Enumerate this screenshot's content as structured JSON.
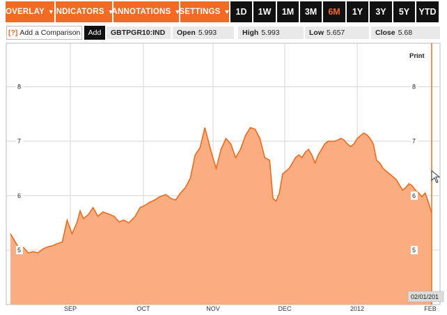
{
  "toolbar": {
    "menus": [
      {
        "label": "OVERLAY",
        "caret": "▼"
      },
      {
        "label": "INDICATORS",
        "caret": "▼"
      },
      {
        "label": "ANNOTATIONS",
        "caret": "▼"
      },
      {
        "label": "SETTINGS",
        "caret": "▼"
      }
    ],
    "ranges": [
      {
        "label": "1D",
        "active": false
      },
      {
        "label": "1W",
        "active": false
      },
      {
        "label": "1M",
        "active": false
      },
      {
        "label": "3M",
        "active": false
      },
      {
        "label": "6M",
        "active": true
      },
      {
        "label": "1Y",
        "active": false
      },
      {
        "label": "3Y",
        "active": false
      },
      {
        "label": "5Y",
        "active": false
      },
      {
        "label": "YTD",
        "active": false
      }
    ]
  },
  "quote": {
    "help_icon": "[?]",
    "comparison_label": "Add a Comparison",
    "add_label": "Add",
    "ticker": "GBTPGR10:IND",
    "open_label": "Open",
    "open_value": "5.993",
    "high_label": "High",
    "high_value": "5.993",
    "low_label": "Low",
    "low_value": "5.657",
    "close_label": "Close",
    "close_value": "5.68"
  },
  "chart": {
    "print_label": "Print",
    "date_label": "02/01/201",
    "cursor_icon": "mouse-pointer-icon"
  },
  "colors": {
    "accent": "#f26b22",
    "fill": "#f9ad80",
    "line": "#ee6a1d",
    "toolbar_dark": "#111111"
  },
  "chart_data": {
    "type": "area",
    "ylim": [
      4.0,
      8.8
    ],
    "yticks": [
      5,
      6,
      7,
      8
    ],
    "months": [
      "SEP",
      "OCT",
      "NOV",
      "DEC",
      "2012",
      "FEB"
    ],
    "x": [
      0,
      3,
      5,
      8,
      11,
      14,
      17,
      20,
      23,
      26,
      29,
      32,
      35,
      38,
      41,
      43,
      45,
      48,
      51,
      54,
      57,
      61,
      64,
      67,
      70,
      73,
      77,
      80,
      83,
      86,
      89,
      92,
      96,
      99,
      102,
      105,
      108,
      111,
      114,
      117,
      120,
      124,
      127,
      130,
      133,
      136,
      139,
      142,
      145,
      148,
      151,
      154,
      157,
      160,
      162,
      164,
      166,
      168,
      170,
      172,
      174,
      176,
      178,
      180,
      182,
      184,
      186,
      188,
      190,
      192,
      194,
      196,
      198,
      200,
      202,
      204,
      206,
      208,
      210,
      212,
      214,
      216,
      218,
      220,
      222,
      224,
      226,
      228,
      230,
      232,
      234,
      236,
      238,
      240,
      242,
      244,
      246,
      248,
      250,
      252,
      254,
      256,
      258,
      260
    ],
    "values": [
      5.3,
      5.15,
      5.05,
      5.05,
      4.95,
      4.97,
      4.95,
      5.02,
      5.06,
      5.08,
      5.12,
      5.15,
      5.55,
      5.3,
      5.5,
      5.72,
      5.58,
      5.65,
      5.78,
      5.62,
      5.7,
      5.66,
      5.62,
      5.52,
      5.55,
      5.5,
      5.62,
      5.78,
      5.82,
      5.88,
      5.92,
      5.98,
      6.02,
      5.95,
      5.92,
      6.05,
      6.15,
      6.32,
      6.75,
      6.88,
      7.25,
      6.8,
      6.5,
      6.85,
      7.05,
      6.95,
      6.7,
      6.85,
      7.1,
      7.25,
      7.22,
      7.05,
      6.7,
      6.65,
      5.95,
      5.9,
      6.05,
      6.4,
      6.45,
      6.5,
      6.6,
      6.7,
      6.75,
      6.7,
      6.8,
      6.85,
      6.75,
      6.6,
      6.75,
      6.85,
      6.95,
      7.0,
      7.0,
      7.0,
      7.02,
      7.05,
      7.02,
      6.95,
      6.9,
      6.95,
      7.05,
      7.1,
      7.15,
      7.12,
      7.05,
      6.95,
      6.65,
      6.6,
      6.5,
      6.45,
      6.4,
      6.35,
      6.3,
      6.2,
      6.1,
      6.15,
      6.22,
      6.18,
      6.1,
      6.05,
      5.98,
      6.05,
      5.88,
      5.68
    ]
  }
}
